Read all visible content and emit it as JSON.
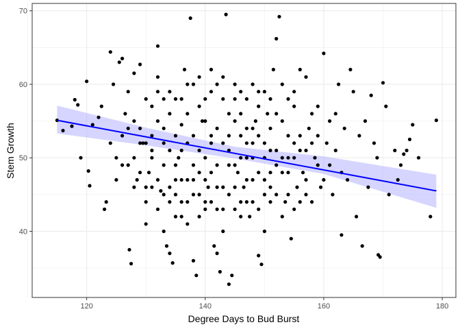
{
  "chart_data": {
    "type": "scatter",
    "xlabel": "Degree Days to Bud Burst",
    "ylabel": "Stem Growth",
    "xlim": [
      110.8,
      182.3
    ],
    "ylim": [
      31.0,
      71.0
    ],
    "x_ticks": [
      120,
      140,
      160,
      180
    ],
    "y_ticks": [
      40,
      50,
      60,
      70
    ],
    "x_tick_labels": [
      "120",
      "140",
      "160",
      "180"
    ],
    "y_tick_labels": [
      "40",
      "50",
      "60",
      "70"
    ],
    "grid": true,
    "legend": "none",
    "colors": {
      "points": "#000000",
      "fit_line": "#0000ff",
      "confidence_band": "#b3b3ff",
      "panel_border": "#333333",
      "grid": "#ebebeb"
    },
    "regression": {
      "method": "linear",
      "x": [
        115,
        179
      ],
      "y": [
        55.1,
        45.5
      ]
    },
    "confidence_band": {
      "x": [
        115,
        130,
        145,
        160,
        179
      ],
      "lower": [
        53.3,
        51.7,
        49.9,
        47.8,
        43.2
      ],
      "upper": [
        57.1,
        54.1,
        51.5,
        50.2,
        47.7
      ]
    },
    "points": [
      [
        115,
        55.1
      ],
      [
        116,
        53.7
      ],
      [
        117.5,
        54.3
      ],
      [
        118,
        57.9
      ],
      [
        118.5,
        57.2
      ],
      [
        119,
        50
      ],
      [
        120,
        60.4
      ],
      [
        120.3,
        48.2
      ],
      [
        120.5,
        46.2
      ],
      [
        121,
        54.5
      ],
      [
        122,
        55.5
      ],
      [
        122.5,
        57
      ],
      [
        123,
        43
      ],
      [
        123.3,
        44
      ],
      [
        124,
        64.4
      ],
      [
        124.5,
        60
      ],
      [
        125,
        50
      ],
      [
        125.5,
        63
      ],
      [
        126,
        63.5
      ],
      [
        126.5,
        56
      ],
      [
        127,
        59
      ],
      [
        127.2,
        37.5
      ],
      [
        127.5,
        35.6
      ],
      [
        128,
        61.5
      ],
      [
        128.5,
        47
      ],
      [
        129,
        62.7
      ],
      [
        129.5,
        52
      ],
      [
        130,
        41
      ],
      [
        130.5,
        48
      ],
      [
        131,
        50
      ],
      [
        132,
        65.2
      ],
      [
        132.5,
        45.5
      ],
      [
        133,
        40
      ],
      [
        133.5,
        38
      ],
      [
        134,
        37
      ],
      [
        134.5,
        35.7
      ],
      [
        135,
        42
      ],
      [
        135.5,
        50
      ],
      [
        136,
        54.5
      ],
      [
        136.5,
        62
      ],
      [
        137,
        41
      ],
      [
        137.5,
        69
      ],
      [
        138,
        36
      ],
      [
        138.5,
        34
      ],
      [
        139,
        48
      ],
      [
        139.5,
        55
      ],
      [
        140,
        44
      ],
      [
        140.5,
        46
      ],
      [
        141,
        52
      ],
      [
        141.5,
        38
      ],
      [
        142,
        37
      ],
      [
        142.5,
        34.5
      ],
      [
        143,
        40
      ],
      [
        143.5,
        69.5
      ],
      [
        144,
        32.8
      ],
      [
        144.5,
        34
      ],
      [
        145,
        58
      ],
      [
        145.5,
        48
      ],
      [
        146,
        44
      ],
      [
        146.5,
        46
      ],
      [
        147,
        52
      ],
      [
        147.5,
        42
      ],
      [
        148,
        50
      ],
      [
        148.5,
        55
      ],
      [
        149,
        36.7
      ],
      [
        149.5,
        35.5
      ],
      [
        150,
        40
      ],
      [
        150.5,
        56
      ],
      [
        151,
        46
      ],
      [
        151.5,
        62
      ],
      [
        152,
        66.2
      ],
      [
        152.5,
        69.2
      ],
      [
        153,
        50
      ],
      [
        153.5,
        44
      ],
      [
        154,
        58
      ],
      [
        154.5,
        39
      ],
      [
        155,
        52
      ],
      [
        155.5,
        46
      ],
      [
        156,
        62
      ],
      [
        156.5,
        48
      ],
      [
        157,
        61
      ],
      [
        157.5,
        54
      ],
      [
        158,
        44
      ],
      [
        158.5,
        50
      ],
      [
        159,
        57
      ],
      [
        159.5,
        46
      ],
      [
        160,
        64.2
      ],
      [
        160.5,
        52
      ],
      [
        161,
        49
      ],
      [
        161.5,
        45
      ],
      [
        162,
        56
      ],
      [
        162.5,
        60
      ],
      [
        163,
        39.5
      ],
      [
        163.5,
        54
      ],
      [
        164,
        47
      ],
      [
        164.5,
        62
      ],
      [
        165,
        59
      ],
      [
        165.5,
        42
      ],
      [
        166,
        53
      ],
      [
        166.5,
        38
      ],
      [
        167,
        55
      ],
      [
        167.5,
        46
      ],
      [
        168,
        58.5
      ],
      [
        168.5,
        52
      ],
      [
        169,
        50
      ],
      [
        169.2,
        36.8
      ],
      [
        169.5,
        36.5
      ],
      [
        170,
        60.2
      ],
      [
        170.5,
        57
      ],
      [
        171,
        45
      ],
      [
        172,
        51
      ],
      [
        172.5,
        47
      ],
      [
        173,
        49
      ],
      [
        173.5,
        50.5
      ],
      [
        174,
        51
      ],
      [
        174.5,
        52.5
      ],
      [
        175,
        54.5
      ],
      [
        178,
        42
      ],
      [
        179,
        55.1
      ],
      [
        176,
        50
      ],
      [
        132,
        47
      ],
      [
        133,
        52
      ],
      [
        134,
        46
      ],
      [
        135,
        49
      ],
      [
        136,
        51
      ],
      [
        137,
        47
      ],
      [
        138,
        53
      ],
      [
        139,
        45
      ],
      [
        140,
        50
      ],
      [
        141,
        48
      ],
      [
        142,
        54
      ],
      [
        143,
        46
      ],
      [
        144,
        51
      ],
      [
        145,
        49
      ],
      [
        146,
        53
      ],
      [
        147,
        47
      ],
      [
        148,
        52
      ],
      [
        149,
        48
      ],
      [
        150,
        50
      ],
      [
        151,
        54
      ],
      [
        130,
        52
      ],
      [
        131,
        46
      ],
      [
        132,
        55
      ],
      [
        133,
        49
      ],
      [
        134,
        44
      ],
      [
        135,
        58
      ],
      [
        136,
        47
      ],
      [
        137,
        56
      ],
      [
        138,
        49
      ],
      [
        139,
        57
      ],
      [
        140,
        43
      ],
      [
        141,
        59
      ],
      [
        142,
        49
      ],
      [
        143,
        52
      ],
      [
        144,
        45
      ],
      [
        145,
        55
      ],
      [
        146,
        50
      ],
      [
        147,
        58
      ],
      [
        148,
        44
      ],
      [
        149,
        53
      ],
      [
        150,
        47
      ],
      [
        151,
        51
      ],
      [
        152,
        45
      ],
      [
        153,
        55
      ],
      [
        154,
        48
      ],
      [
        155,
        50
      ],
      [
        156,
        53
      ],
      [
        157,
        47
      ],
      [
        158,
        52
      ],
      [
        159,
        49
      ],
      [
        128,
        50
      ],
      [
        129,
        54
      ],
      [
        130,
        46
      ],
      [
        131,
        57
      ],
      [
        132,
        43
      ],
      [
        133,
        58
      ],
      [
        134,
        51
      ],
      [
        135,
        45
      ],
      [
        136,
        44
      ],
      [
        137,
        52
      ],
      [
        138,
        47
      ],
      [
        139,
        51
      ],
      [
        140,
        55
      ],
      [
        141,
        44
      ],
      [
        142,
        46
      ],
      [
        143,
        58
      ],
      [
        144,
        49
      ],
      [
        145,
        43
      ],
      [
        146,
        56
      ],
      [
        147,
        50
      ],
      [
        148,
        47
      ],
      [
        149,
        57
      ],
      [
        150,
        52
      ],
      [
        151,
        44
      ],
      [
        152,
        51
      ],
      [
        153,
        48
      ],
      [
        154,
        53
      ],
      [
        155,
        57
      ],
      [
        156,
        44
      ],
      [
        157,
        51
      ],
      [
        126,
        53
      ],
      [
        127,
        49
      ],
      [
        128,
        55
      ],
      [
        129,
        48
      ],
      [
        130,
        58
      ],
      [
        131,
        53
      ],
      [
        132,
        59
      ],
      [
        133,
        45
      ],
      [
        134,
        56
      ],
      [
        135,
        53
      ],
      [
        136,
        58
      ],
      [
        137,
        44
      ],
      [
        138,
        60
      ],
      [
        139,
        42
      ],
      [
        140,
        58
      ],
      [
        141,
        53
      ],
      [
        142,
        60
      ],
      [
        143,
        43
      ],
      [
        144,
        56
      ],
      [
        145,
        60
      ],
      [
        146,
        42
      ],
      [
        147,
        54
      ],
      [
        148,
        60
      ],
      [
        149,
        43
      ],
      [
        150,
        59
      ],
      [
        151,
        48
      ],
      [
        152,
        56
      ],
      [
        153,
        42
      ],
      [
        154,
        50
      ],
      [
        155,
        43
      ],
      [
        124,
        52
      ],
      [
        125,
        47
      ],
      [
        126,
        49
      ],
      [
        127,
        54
      ],
      [
        128,
        46
      ],
      [
        129,
        52
      ],
      [
        130,
        44
      ],
      [
        131,
        51
      ],
      [
        132,
        61
      ],
      [
        133,
        54
      ],
      [
        134,
        59
      ],
      [
        135,
        47
      ],
      [
        136,
        42
      ],
      [
        137,
        60
      ],
      [
        138,
        45
      ],
      [
        139,
        61
      ],
      [
        140,
        47
      ],
      [
        141,
        62
      ],
      [
        142,
        43
      ],
      [
        143,
        61
      ],
      [
        144,
        53
      ],
      [
        145,
        46
      ],
      [
        146,
        59
      ],
      [
        147,
        44
      ],
      [
        148,
        54
      ],
      [
        149,
        59
      ],
      [
        150,
        45
      ],
      [
        151,
        58
      ],
      [
        152,
        49
      ],
      [
        153,
        60
      ],
      [
        154,
        45
      ],
      [
        155,
        59
      ],
      [
        156,
        51
      ],
      [
        157,
        45
      ],
      [
        158,
        56
      ],
      [
        159,
        53
      ],
      [
        160,
        47
      ],
      [
        161,
        55
      ],
      [
        162,
        51
      ],
      [
        163,
        48
      ]
    ]
  }
}
